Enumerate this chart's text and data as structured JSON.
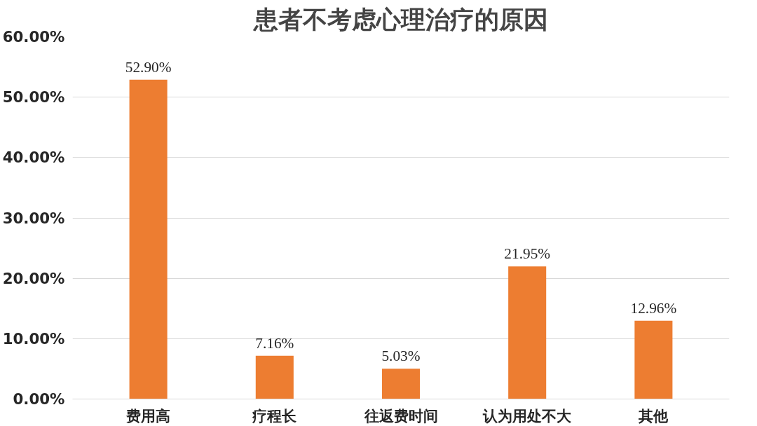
{
  "chart_data": {
    "type": "bar",
    "title": "患者不考虑心理治疗的原因",
    "categories": [
      "费用高",
      "疗程长",
      "往返费时间",
      "认为用处不大",
      "其他"
    ],
    "values": [
      52.9,
      7.16,
      5.03,
      21.95,
      12.96
    ],
    "value_labels": [
      "52.90%",
      "7.16%",
      "5.03%",
      "21.95%",
      "12.96%"
    ],
    "color": "#ed7d31",
    "ylim": [
      0,
      60
    ],
    "yticks": [
      {
        "value": 0,
        "label": "0.00%"
      },
      {
        "value": 10,
        "label": "10.00%"
      },
      {
        "value": 20,
        "label": "20.00%"
      },
      {
        "value": 30,
        "label": "30.00%"
      },
      {
        "value": 40,
        "label": "40.00%"
      },
      {
        "value": 50,
        "label": "50.00%"
      },
      {
        "value": 60,
        "label": "60.00%"
      }
    ],
    "grid": "y"
  }
}
